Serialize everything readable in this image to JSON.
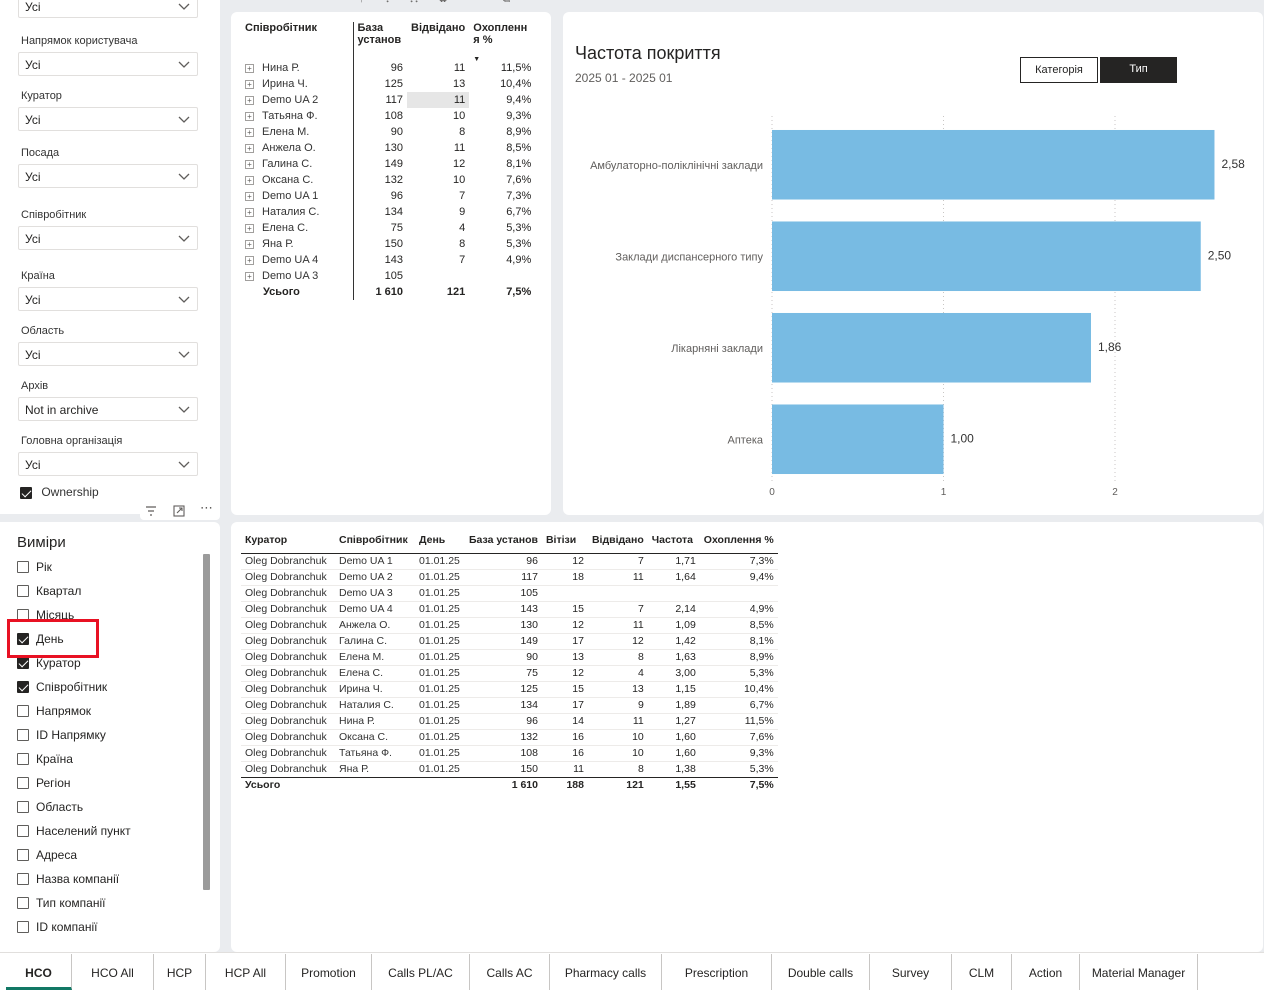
{
  "filters": {
    "top_value": "Усі",
    "items": [
      {
        "label": "Напрямок користувача",
        "value": "Усі"
      },
      {
        "label": "Куратор",
        "value": "Усі"
      },
      {
        "label": "Посада",
        "value": "Усі"
      },
      {
        "label": "Співробітник",
        "value": "Усі"
      },
      {
        "label": "Країна",
        "value": "Усі"
      },
      {
        "label": "Область",
        "value": "Усі"
      },
      {
        "label": "Архів",
        "value": "Not in archive"
      },
      {
        "label": "Головна організація",
        "value": "Усі"
      }
    ],
    "ownership_label": "Ownership"
  },
  "dimensions": {
    "title": "Виміри",
    "items": [
      {
        "label": "Рік",
        "checked": false
      },
      {
        "label": "Квартал",
        "checked": false
      },
      {
        "label": "Місяць",
        "checked": false
      },
      {
        "label": "День",
        "checked": true
      },
      {
        "label": "Куратор",
        "checked": true
      },
      {
        "label": "Співробітник",
        "checked": true
      },
      {
        "label": "Напрямок",
        "checked": false
      },
      {
        "label": "ID Напрямку",
        "checked": false
      },
      {
        "label": "Країна",
        "checked": false
      },
      {
        "label": "Регіон",
        "checked": false
      },
      {
        "label": "Область",
        "checked": false
      },
      {
        "label": "Населений пункт",
        "checked": false
      },
      {
        "label": "Адреса",
        "checked": false
      },
      {
        "label": "Назва компанії",
        "checked": false
      },
      {
        "label": "Тип компанії",
        "checked": false
      },
      {
        "label": "ID компанії",
        "checked": false
      }
    ]
  },
  "matrix": {
    "headers": [
      "Співробітник",
      "База установ",
      "Відвідано",
      "Охоплення %"
    ],
    "rows": [
      [
        "Нина Р.",
        "96",
        "11",
        "11,5%"
      ],
      [
        "Ирина Ч.",
        "125",
        "13",
        "10,4%"
      ],
      [
        "Demo UA 2",
        "117",
        "11",
        "9,4%"
      ],
      [
        "Татьяна Ф.",
        "108",
        "10",
        "9,3%"
      ],
      [
        "Елена М.",
        "90",
        "8",
        "8,9%"
      ],
      [
        "Анжела О.",
        "130",
        "11",
        "8,5%"
      ],
      [
        "Галина С.",
        "149",
        "12",
        "8,1%"
      ],
      [
        "Оксана С.",
        "132",
        "10",
        "7,6%"
      ],
      [
        "Demo UA 1",
        "96",
        "7",
        "7,3%"
      ],
      [
        "Наталия С.",
        "134",
        "9",
        "6,7%"
      ],
      [
        "Елена С.",
        "75",
        "4",
        "5,3%"
      ],
      [
        "Яна Р.",
        "150",
        "8",
        "5,3%"
      ],
      [
        "Demo UA 4",
        "143",
        "7",
        "4,9%"
      ],
      [
        "Demo UA 3",
        "105",
        "",
        ""
      ]
    ],
    "total": [
      "Усього",
      "1 610",
      "121",
      "7,5%"
    ]
  },
  "chart_data": {
    "type": "bar",
    "orientation": "horizontal",
    "title": "Частота покриття",
    "subtitle": "2025 01 - 2025 01",
    "categories": [
      "Амбулаторно-поліклінічні заклади",
      "Заклади диспансерного типу",
      "Лікарняні заклади",
      "Аптека"
    ],
    "values": [
      2.58,
      2.5,
      1.86,
      1.0
    ],
    "value_labels": [
      "2,58",
      "2,50",
      "1,86",
      "1,00"
    ],
    "xlim": [
      0,
      2.6
    ],
    "xticks": [
      "0",
      "1",
      "2"
    ],
    "bar_color": "#78bbe3",
    "grid": true
  },
  "chart_buttons": {
    "category": "Категорія",
    "type": "Тип"
  },
  "detail_table": {
    "headers": [
      "Куратор",
      "Співробітник",
      "День",
      "База установ",
      "Вітізи",
      "Відвідано",
      "Частота",
      "Охоплення %"
    ],
    "rows": [
      [
        "Oleg Dobranchuk",
        "Demo UA 1",
        "01.01.25",
        "96",
        "12",
        "7",
        "1,71",
        "7,3%"
      ],
      [
        "Oleg Dobranchuk",
        "Demo UA 2",
        "01.01.25",
        "117",
        "18",
        "11",
        "1,64",
        "9,4%"
      ],
      [
        "Oleg Dobranchuk",
        "Demo UA 3",
        "01.01.25",
        "105",
        "",
        "",
        "",
        ""
      ],
      [
        "Oleg Dobranchuk",
        "Demo UA 4",
        "01.01.25",
        "143",
        "15",
        "7",
        "2,14",
        "4,9%"
      ],
      [
        "Oleg Dobranchuk",
        "Анжела О.",
        "01.01.25",
        "130",
        "12",
        "11",
        "1,09",
        "8,5%"
      ],
      [
        "Oleg Dobranchuk",
        "Галина С.",
        "01.01.25",
        "149",
        "17",
        "12",
        "1,42",
        "8,1%"
      ],
      [
        "Oleg Dobranchuk",
        "Елена М.",
        "01.01.25",
        "90",
        "13",
        "8",
        "1,63",
        "8,9%"
      ],
      [
        "Oleg Dobranchuk",
        "Елена С.",
        "01.01.25",
        "75",
        "12",
        "4",
        "3,00",
        "5,3%"
      ],
      [
        "Oleg Dobranchuk",
        "Ирина Ч.",
        "01.01.25",
        "125",
        "15",
        "13",
        "1,15",
        "10,4%"
      ],
      [
        "Oleg Dobranchuk",
        "Наталия С.",
        "01.01.25",
        "134",
        "17",
        "9",
        "1,89",
        "6,7%"
      ],
      [
        "Oleg Dobranchuk",
        "Нина Р.",
        "01.01.25",
        "96",
        "14",
        "11",
        "1,27",
        "11,5%"
      ],
      [
        "Oleg Dobranchuk",
        "Оксана С.",
        "01.01.25",
        "132",
        "16",
        "10",
        "1,60",
        "7,6%"
      ],
      [
        "Oleg Dobranchuk",
        "Татьяна Ф.",
        "01.01.25",
        "108",
        "16",
        "10",
        "1,60",
        "9,3%"
      ],
      [
        "Oleg Dobranchuk",
        "Яна Р.",
        "01.01.25",
        "150",
        "11",
        "8",
        "1,38",
        "5,3%"
      ]
    ],
    "total": [
      "Усього",
      "",
      "",
      "1 610",
      "188",
      "121",
      "1,55",
      "7,5%"
    ]
  },
  "tabs": [
    "HCO",
    "HCO All",
    "HCP",
    "HCP All",
    "Promotion",
    "Calls PL/AC",
    "Calls AC",
    "Pharmacy calls",
    "Prescription",
    "Double calls",
    "Survey",
    "CLM",
    "Action",
    "Material Manager"
  ],
  "active_tab": "HCO",
  "colors": {
    "highlight_box": "#e81123",
    "accent": "#118dff",
    "bar": "#78bbe3"
  }
}
